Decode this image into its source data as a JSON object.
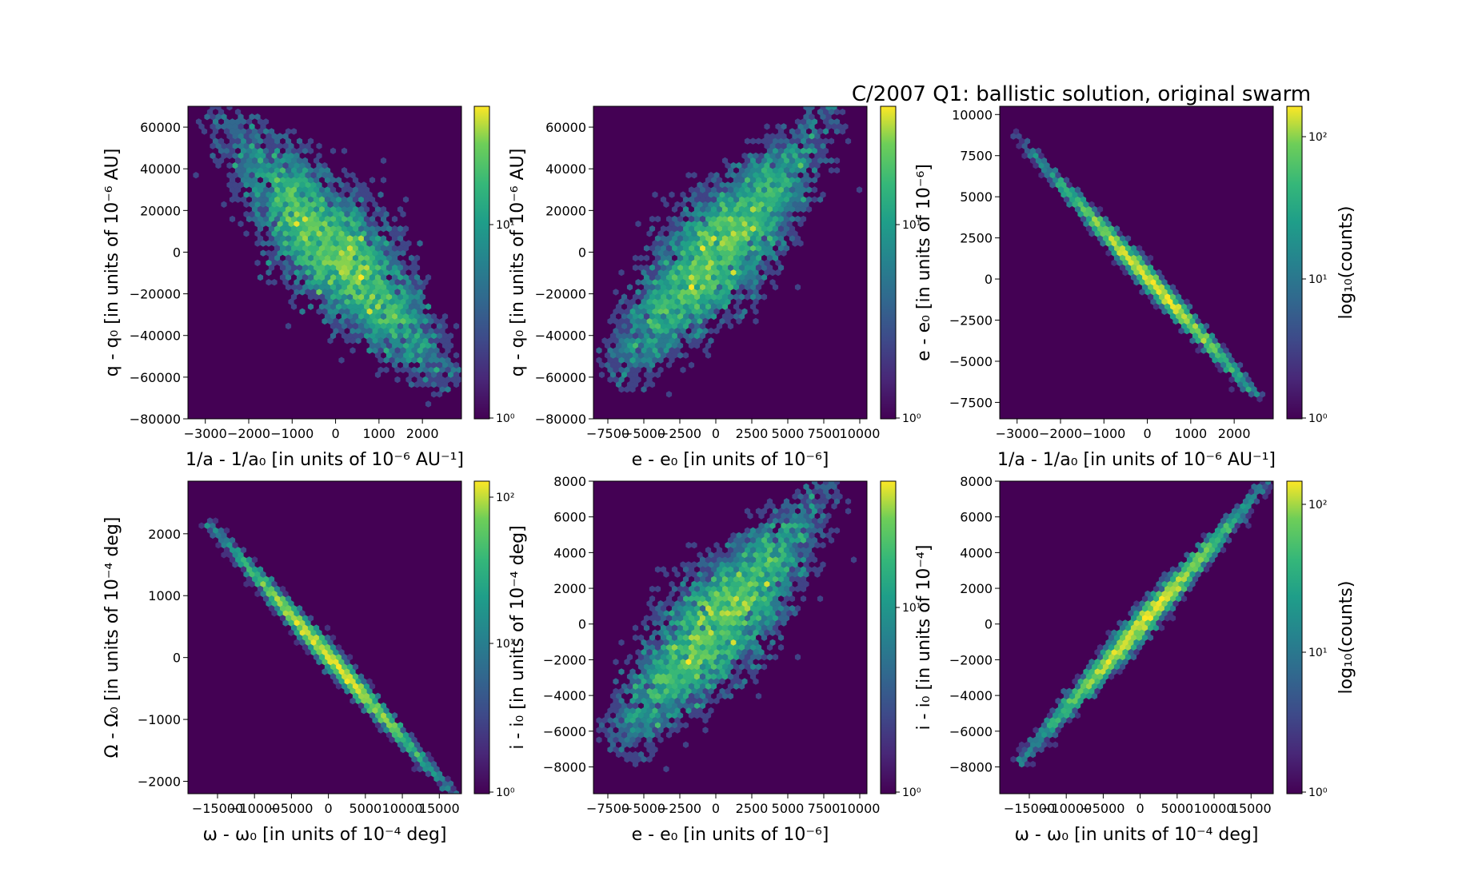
{
  "figure": {
    "title": "C/2007 Q1:  ballistic solution, original swarm",
    "colors": {
      "bg": "#440154",
      "low": "#3b528b",
      "mid": "#21918c",
      "high": "#5ec962",
      "top": "#fde725"
    }
  },
  "chart_data": [
    {
      "type": "heatmap",
      "id": "p1",
      "xlabel": "1/a - 1/a₀ [in units of 10⁻⁶ AU⁻¹]",
      "ylabel": "q - q₀ [in units of 10⁻⁶ AU]",
      "xlim": [
        -3400,
        2900
      ],
      "ylim": [
        -80000,
        70000
      ],
      "xticks": [
        -3000,
        -2000,
        -1000,
        0,
        1000,
        2000
      ],
      "xticklabels": [
        "−3000",
        "−2000",
        "−1000",
        "0",
        "1000",
        "2000"
      ],
      "yticks": [
        -80000,
        -60000,
        -40000,
        -20000,
        0,
        20000,
        40000,
        60000
      ],
      "yticklabels": [
        "−80000",
        "−60000",
        "−40000",
        "−20000",
        "0",
        "20000",
        "40000",
        "60000"
      ],
      "trend": {
        "x_start": -3000,
        "y_start": 68000,
        "x_end": 2500,
        "y_end": -67000,
        "x_center": 0,
        "y_center": 0,
        "x_spread": 750,
        "perp_spread": 0.07
      },
      "colorbar": {
        "scale": "log",
        "ticklabels": [
          "10⁰",
          "10¹"
        ],
        "label": ""
      }
    },
    {
      "type": "heatmap",
      "id": "p2",
      "xlabel": "e - e₀ [in units of 10⁻⁶]",
      "ylabel": "q - q₀ [in units of 10⁻⁶ AU]",
      "xlim": [
        -8500,
        10500
      ],
      "ylim": [
        -80000,
        70000
      ],
      "xticks": [
        -7500,
        -5000,
        -2500,
        0,
        2500,
        5000,
        7500,
        10000
      ],
      "xticklabels": [
        "−7500",
        "−5000",
        "−2500",
        "0",
        "2500",
        "5000",
        "7500",
        "10000"
      ],
      "yticks": [
        -80000,
        -60000,
        -40000,
        -20000,
        0,
        20000,
        40000,
        60000
      ],
      "yticklabels": [
        "−80000",
        "−60000",
        "−40000",
        "−20000",
        "0",
        "20000",
        "40000",
        "60000"
      ],
      "trend": {
        "x_start": -6800,
        "y_start": -65000,
        "x_end": 9000,
        "y_end": 68000,
        "x_center": 0,
        "y_center": 0,
        "x_spread": 2300,
        "perp_spread": 0.07
      },
      "colorbar": {
        "scale": "log",
        "ticklabels": [
          "10⁰",
          "10¹"
        ],
        "label": ""
      }
    },
    {
      "type": "heatmap",
      "id": "p3",
      "xlabel": "1/a - 1/a₀ [in units of 10⁻⁶ AU⁻¹]",
      "ylabel": "e - e₀ [in units of 10⁻⁶]",
      "xlim": [
        -3400,
        2900
      ],
      "ylim": [
        -8500,
        10500
      ],
      "xticks": [
        -3000,
        -2000,
        -1000,
        0,
        1000,
        2000
      ],
      "xticklabels": [
        "−3000",
        "−2000",
        "−1000",
        "0",
        "1000",
        "2000"
      ],
      "yticks": [
        -7500,
        -5000,
        -2500,
        0,
        2500,
        5000,
        7500,
        10000
      ],
      "yticklabels": [
        "−7500",
        "−5000",
        "−2500",
        "0",
        "2500",
        "5000",
        "7500",
        "10000"
      ],
      "trend": {
        "x_start": -3000,
        "y_start": 9000,
        "x_end": 2600,
        "y_end": -7000,
        "x_center": 0,
        "y_center": 0,
        "x_spread": 750,
        "perp_spread": 0.012
      },
      "colorbar": {
        "scale": "log",
        "ticklabels": [
          "10⁰",
          "10¹",
          "10²"
        ],
        "label": "log₁₀(counts)"
      }
    },
    {
      "type": "heatmap",
      "id": "p4",
      "xlabel": "ω - ω₀ [in units of 10⁻⁴ deg]",
      "ylabel": "Ω - Ω₀ [in units of 10⁻⁴ deg]",
      "xlim": [
        -19000,
        18000
      ],
      "ylim": [
        -2200,
        2850
      ],
      "xticks": [
        -15000,
        -10000,
        -5000,
        0,
        5000,
        10000,
        15000
      ],
      "xticklabels": [
        "−15000",
        "−10000",
        "−5000",
        "0",
        "5000",
        "10000",
        "15000"
      ],
      "yticks": [
        -2000,
        -1000,
        0,
        1000,
        2000
      ],
      "yticklabels": [
        "−2000",
        "−1000",
        "0",
        "1000",
        "2000"
      ],
      "trend": {
        "x_start": -16000,
        "y_start": 2300,
        "x_end": 17500,
        "y_end": -2150,
        "x_center": 0,
        "y_center": 0,
        "x_spread": 4500,
        "perp_spread": 0.012
      },
      "colorbar": {
        "scale": "log",
        "ticklabels": [
          "10⁰",
          "10¹",
          "10²"
        ],
        "label": ""
      }
    },
    {
      "type": "heatmap",
      "id": "p5",
      "xlabel": "e - e₀ [in units of 10⁻⁶]",
      "ylabel": "i - i₀ [in units of 10⁻⁴ deg]",
      "xlim": [
        -8500,
        10500
      ],
      "ylim": [
        -9500,
        8000
      ],
      "xticks": [
        -7500,
        -5000,
        -2500,
        0,
        2500,
        5000,
        7500,
        10000
      ],
      "xticklabels": [
        "−7500",
        "−5000",
        "−2500",
        "0",
        "2500",
        "5000",
        "7500",
        "10000"
      ],
      "yticks": [
        -8000,
        -6000,
        -4000,
        -2000,
        0,
        2000,
        4000,
        6000,
        8000
      ],
      "yticklabels": [
        "−8000",
        "−6000",
        "−4000",
        "−2000",
        "0",
        "2000",
        "4000",
        "6000",
        "8000"
      ],
      "trend": {
        "x_start": -6700,
        "y_start": -7500,
        "x_end": 9000,
        "y_end": 7900,
        "x_center": 0,
        "y_center": 0,
        "x_spread": 2300,
        "perp_spread": 0.07
      },
      "colorbar": {
        "scale": "log",
        "ticklabels": [
          "10⁰",
          "10¹"
        ],
        "label": ""
      }
    },
    {
      "type": "heatmap",
      "id": "p6",
      "xlabel": "ω - ω₀ [in units of 10⁻⁴ deg]",
      "ylabel": "i - i₀ [in units of 10⁻⁴]",
      "xlim": [
        -19000,
        18000
      ],
      "ylim": [
        -9500,
        8000
      ],
      "xticks": [
        -15000,
        -10000,
        -5000,
        0,
        5000,
        10000,
        15000
      ],
      "xticklabels": [
        "−15000",
        "−10000",
        "−5000",
        "0",
        "5000",
        "10000",
        "15000"
      ],
      "yticks": [
        -8000,
        -6000,
        -4000,
        -2000,
        0,
        2000,
        4000,
        6000,
        8000
      ],
      "yticklabels": [
        "−8000",
        "−6000",
        "−4000",
        "−2000",
        "0",
        "2000",
        "4000",
        "6000",
        "8000"
      ],
      "trend": {
        "x_start": -16500,
        "y_start": -7900,
        "x_end": 17500,
        "y_end": 8000,
        "x_center": 0,
        "y_center": 0,
        "x_spread": 4500,
        "perp_spread": 0.015
      },
      "colorbar": {
        "scale": "log",
        "ticklabels": [
          "10⁰",
          "10¹",
          "10²"
        ],
        "label": "log₁₀(counts)"
      }
    }
  ]
}
